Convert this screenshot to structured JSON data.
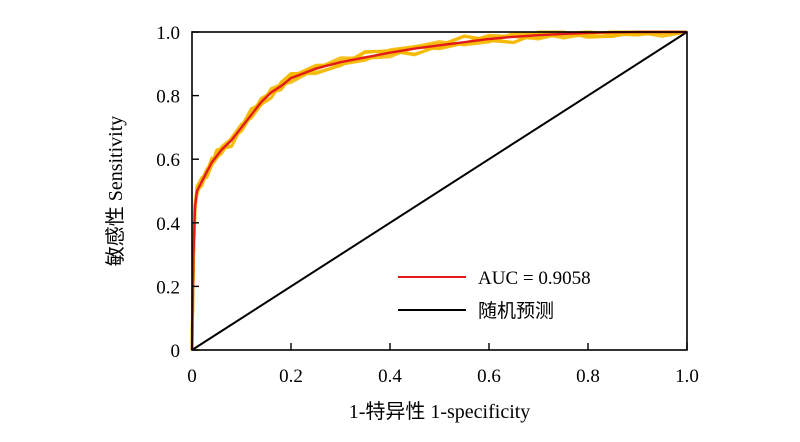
{
  "chart_data": {
    "type": "line",
    "title": "",
    "xlabel": "1-特异性 1-specificity",
    "ylabel": "敏感性 Sensitivity",
    "xlim": [
      0,
      1
    ],
    "ylim": [
      0,
      1
    ],
    "x_ticks": [
      "0",
      "0.2",
      "0.4",
      "0.6",
      "0.8",
      "1.0"
    ],
    "y_ticks": [
      "0",
      "0.2",
      "0.4",
      "0.6",
      "0.8",
      "1.0"
    ],
    "grid": false,
    "legend_position": "lower-right",
    "series": [
      {
        "name": "AUC = 0.9058",
        "color": "#e31a1c",
        "x": [
          0,
          0.003,
          0.006,
          0.01,
          0.02,
          0.03,
          0.04,
          0.05,
          0.06,
          0.08,
          0.1,
          0.12,
          0.14,
          0.16,
          0.18,
          0.2,
          0.25,
          0.3,
          0.35,
          0.4,
          0.45,
          0.5,
          0.55,
          0.6,
          0.65,
          0.7,
          0.75,
          0.8,
          0.85,
          0.9,
          0.95,
          1.0
        ],
        "y": [
          0,
          0.3,
          0.45,
          0.5,
          0.53,
          0.56,
          0.59,
          0.61,
          0.63,
          0.66,
          0.7,
          0.74,
          0.78,
          0.81,
          0.83,
          0.855,
          0.885,
          0.905,
          0.92,
          0.935,
          0.948,
          0.958,
          0.968,
          0.978,
          0.985,
          0.99,
          0.994,
          0.997,
          0.999,
          1.0,
          1.0,
          1.0
        ]
      },
      {
        "name": "随机预测",
        "color": "#000000",
        "x": [
          0,
          1
        ],
        "y": [
          0,
          1
        ]
      }
    ],
    "resample_band_color": "#f5b800"
  }
}
